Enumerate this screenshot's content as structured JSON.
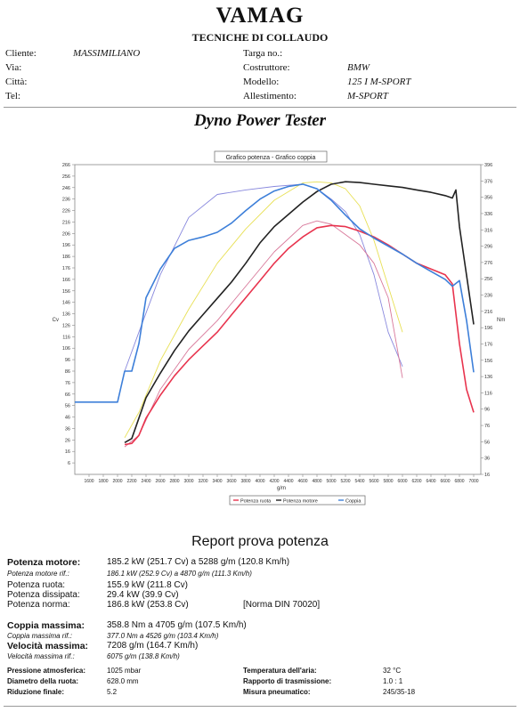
{
  "header": {
    "title": "VAMAG",
    "subtitle": "TECNICHE DI COLLAUDO",
    "cliente_label": "Cliente:",
    "cliente_value": "MASSIMILIANO",
    "via_label": "Via:",
    "citta_label": "Città:",
    "tel_label": "Tel:",
    "targa_label": "Targa no.:",
    "costruttore_label": "Costruttore:",
    "costruttore_value": "BMW",
    "modello_label": "Modello:",
    "modello_value": "125 I M-SPORT",
    "allestimento_label": "Allestimento:",
    "allestimento_value": "M-SPORT"
  },
  "dyno_title": "Dyno Power Tester",
  "chart_data": {
    "type": "line",
    "title": "Grafico potenza - Grafico coppia",
    "xlabel": "g/m",
    "ylabel_left": "Cv",
    "ylabel_right": "Nm",
    "xlim": [
      1400,
      7100
    ],
    "x_ticks": [
      1600,
      1800,
      2000,
      2200,
      2400,
      2600,
      2800,
      3000,
      3200,
      3400,
      3600,
      3800,
      4000,
      4200,
      4400,
      4600,
      4800,
      5000,
      5200,
      5400,
      5600,
      5800,
      6000,
      6200,
      6400,
      6600,
      6800,
      7000
    ],
    "ylim_left": [
      -4,
      266
    ],
    "y_ticks_left": [
      266,
      256,
      246,
      236,
      226,
      216,
      206,
      196,
      186,
      176,
      166,
      156,
      146,
      136,
      126,
      116,
      106,
      96,
      86,
      76,
      66,
      56,
      46,
      36,
      26,
      16,
      6
    ],
    "ylim_right": [
      16,
      396
    ],
    "y_ticks_right": [
      396,
      376,
      356,
      336,
      316,
      296,
      276,
      256,
      236,
      216,
      196,
      176,
      156,
      136,
      116,
      96,
      76,
      56,
      36,
      16
    ],
    "series": [
      {
        "name": "Potenza ruota",
        "color": "#e8344e",
        "axis": "left",
        "x": [
          2100,
          2200,
          2300,
          2400,
          2600,
          2800,
          3000,
          3200,
          3400,
          3600,
          3800,
          4000,
          4200,
          4400,
          4600,
          4800,
          5000,
          5200,
          5400,
          5600,
          5800,
          6000,
          6200,
          6400,
          6600,
          6700,
          6800,
          6900,
          7000
        ],
        "y": [
          22,
          23,
          30,
          45,
          65,
          82,
          96,
          108,
          120,
          135,
          150,
          165,
          180,
          193,
          203,
          211,
          213,
          212,
          208,
          203,
          196,
          188,
          180,
          175,
          170,
          162,
          110,
          70,
          50
        ]
      },
      {
        "name": "Potenza motore",
        "color": "#222222",
        "axis": "right",
        "x": [
          2100,
          2200,
          2300,
          2400,
          2600,
          2800,
          3000,
          3200,
          3400,
          3600,
          3800,
          4000,
          4200,
          4400,
          4600,
          4800,
          5000,
          5200,
          5400,
          5600,
          5800,
          6000,
          6200,
          6400,
          6600,
          6700,
          6750,
          6800,
          6900,
          7000
        ],
        "y": [
          55,
          60,
          85,
          110,
          140,
          168,
          192,
          212,
          232,
          252,
          275,
          300,
          320,
          335,
          350,
          363,
          372,
          375,
          374,
          372,
          370,
          368,
          365,
          362,
          358,
          355,
          365,
          320,
          260,
          200
        ]
      },
      {
        "name": "Coppia",
        "color": "#3d7fd9",
        "axis": "left",
        "x": [
          1400,
          2000,
          2100,
          2200,
          2300,
          2400,
          2600,
          2800,
          3000,
          3200,
          3400,
          3600,
          3800,
          4000,
          4200,
          4400,
          4600,
          4800,
          5000,
          5200,
          5400,
          5600,
          5800,
          6000,
          6200,
          6400,
          6600,
          6700,
          6800,
          6900,
          7000
        ],
        "y": [
          59,
          59,
          86,
          86,
          110,
          150,
          175,
          193,
          200,
          203,
          207,
          215,
          226,
          236,
          243,
          247,
          249,
          245,
          235,
          222,
          210,
          202,
          195,
          188,
          180,
          173,
          166,
          160,
          165,
          130,
          85
        ]
      }
    ],
    "reference_curves": [
      {
        "color": "#8888dd",
        "x": [
          2100,
          2300,
          2600,
          3000,
          3400,
          3800,
          4200,
          4600,
          4800,
          5000,
          5200,
          5400,
          5600,
          5800,
          6000
        ],
        "y": [
          86,
          120,
          170,
          220,
          240,
          244,
          247,
          249,
          245,
          236,
          225,
          205,
          170,
          120,
          90
        ]
      },
      {
        "color": "#e8e055",
        "x": [
          2100,
          2300,
          2600,
          3000,
          3400,
          3800,
          4200,
          4600,
          4800,
          5000,
          5200,
          5400,
          5600,
          5800,
          6000
        ],
        "y": [
          28,
          50,
          95,
          140,
          180,
          210,
          235,
          250,
          251,
          250,
          245,
          230,
          200,
          160,
          120
        ]
      },
      {
        "color": "#d8789a",
        "x": [
          2100,
          2300,
          2600,
          3000,
          3400,
          3800,
          4200,
          4600,
          4800,
          5000,
          5200,
          5400,
          5600,
          5800,
          6000
        ],
        "y": [
          20,
          30,
          70,
          105,
          130,
          160,
          190,
          213,
          217,
          214,
          205,
          196,
          180,
          150,
          80
        ]
      }
    ],
    "legend": [
      "Potenza ruota",
      "Potenza motore",
      "Coppia"
    ],
    "legend_position": "bottom",
    "grid": false
  },
  "report": {
    "title": "Report prova potenza",
    "potenza_motore_label": "Potenza motore:",
    "potenza_motore_value": "185.2 kW (251.7 Cv) a 5288 g/m (120.8 Km/h)",
    "potenza_motore_rif_label": "Potenza motore rif.:",
    "potenza_motore_rif_value": "186.1 kW (252.9 Cv) a 4870 g/m (111.3 Km/h)",
    "potenza_ruota_label": "Potenza ruota:",
    "potenza_ruota_value": "155.9 kW (211.8 Cv)",
    "potenza_dissipata_label": "Potenza dissipata:",
    "potenza_dissipata_value": "29.4 kW (39.9 Cv)",
    "potenza_norma_label": "Potenza norma:",
    "potenza_norma_value": "186.8 kW (253.8 Cv)",
    "norma_din": "[Norma DIN 70020]",
    "coppia_massima_label": "Coppia massima:",
    "coppia_massima_value": "358.8 Nm a 4705 g/m (107.5 Km/h)",
    "coppia_massima_rif_label": "Coppia massima rif.:",
    "coppia_massima_rif_value": "377.0 Nm a 4526 g/m (103.4 Km/h)",
    "velocita_massima_label": "Velocità massima:",
    "velocita_massima_value": "7208 g/m (164.7 Km/h)",
    "velocita_massima_rif_label": "Velocità massima rif.:",
    "velocita_massima_rif_value": "6075 g/m (138.8 Km/h)"
  },
  "footer": {
    "pressione_label": "Pressione atmosferica:",
    "pressione_value": "1025 mbar",
    "diametro_label": "Diametro della ruota:",
    "diametro_value": "628.0 mm",
    "riduzione_label": "Riduzione finale:",
    "riduzione_value": "5.2",
    "temperatura_label": "Temperatura dell'aria:",
    "temperatura_value": "32 °C",
    "rapporto_label": "Rapporto di trasmissione:",
    "rapporto_value": "1.0 : 1",
    "misura_label": "Misura pneumatico:",
    "misura_value": "245/35-18"
  }
}
